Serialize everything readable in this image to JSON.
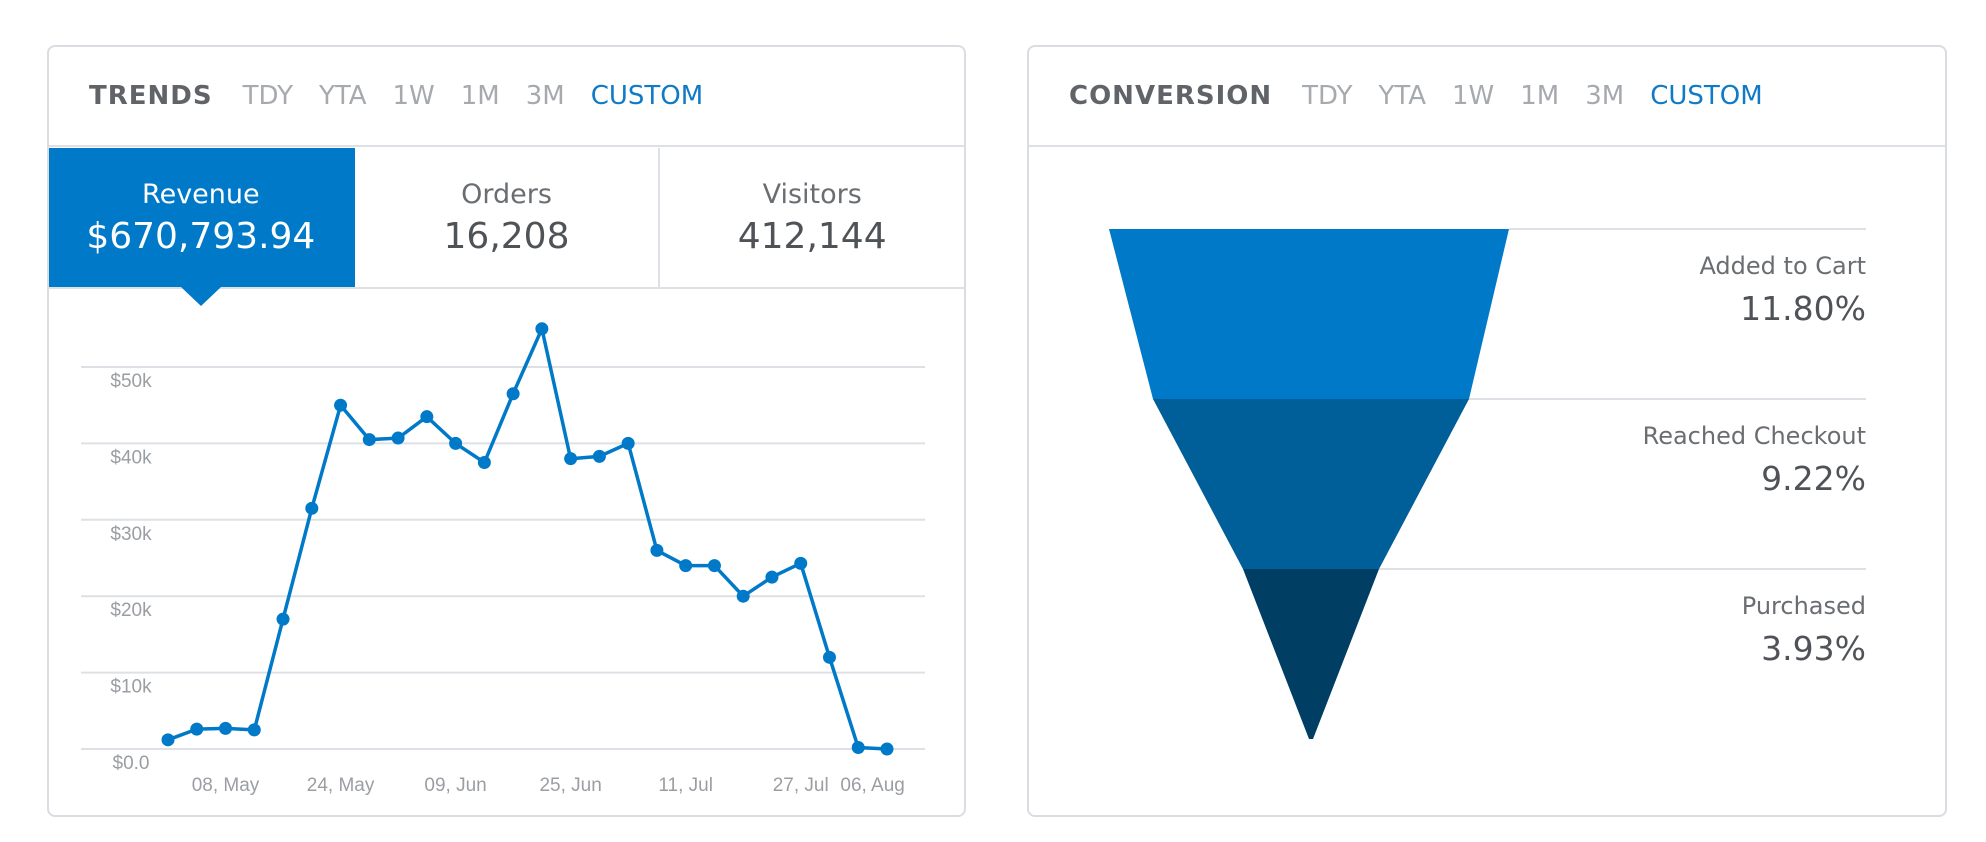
{
  "trends": {
    "title": "TRENDS",
    "ranges": [
      "TDY",
      "YTA",
      "1W",
      "1M",
      "3M",
      "CUSTOM"
    ],
    "active_range": "CUSTOM",
    "metrics": [
      {
        "label": "Revenue",
        "value": "$670,793.94",
        "active": true
      },
      {
        "label": "Orders",
        "value": "16,208",
        "active": false
      },
      {
        "label": "Visitors",
        "value": "412,144",
        "active": false
      }
    ]
  },
  "conversion": {
    "title": "CONVERSION",
    "ranges": [
      "TDY",
      "YTA",
      "1W",
      "1M",
      "3M",
      "CUSTOM"
    ],
    "active_range": "CUSTOM"
  },
  "colors": {
    "accent": "#0079c8",
    "funnel_1": "#0079c8",
    "funnel_2": "#005e98",
    "funnel_3": "#003e64"
  },
  "chart_data": [
    {
      "type": "line",
      "title": "",
      "xlabel": "",
      "ylabel": "",
      "x_tick_labels": [
        "08, May",
        "24, May",
        "09, Jun",
        "25, Jun",
        "11, Jul",
        "27, Jul",
        "06, Aug"
      ],
      "y_tick_labels": [
        "$0.0",
        "$10k",
        "$20k",
        "$30k",
        "$40k",
        "$50k"
      ],
      "ylim": [
        0,
        50000
      ],
      "grid": true,
      "series": [
        {
          "x": [
            "2017-04-30",
            "2017-05-04",
            "2017-05-08",
            "2017-05-12",
            "2017-05-16",
            "2017-05-20",
            "2017-05-24",
            "2017-05-28",
            "2017-06-01",
            "2017-06-05",
            "2017-06-09",
            "2017-06-13",
            "2017-06-17",
            "2017-06-21",
            "2017-06-25",
            "2017-06-29",
            "2017-07-03",
            "2017-07-07",
            "2017-07-11",
            "2017-07-15",
            "2017-07-19",
            "2017-07-23",
            "2017-07-27",
            "2017-07-31",
            "2017-08-04",
            "2017-08-08"
          ],
          "values": [
            1200,
            2600,
            2700,
            2500,
            17000,
            31500,
            45000,
            40500,
            40700,
            43500,
            40000,
            37500,
            46500,
            55000,
            38000,
            38300,
            40000,
            26000,
            24000,
            24000,
            20000,
            22500,
            24300,
            12000,
            200,
            0
          ]
        }
      ]
    },
    {
      "type": "funnel",
      "stages": [
        {
          "label": "Added to Cart",
          "value": "11.80%"
        },
        {
          "label": "Reached Checkout",
          "value": "9.22%"
        },
        {
          "label": "Purchased",
          "value": "3.93%"
        }
      ]
    }
  ]
}
